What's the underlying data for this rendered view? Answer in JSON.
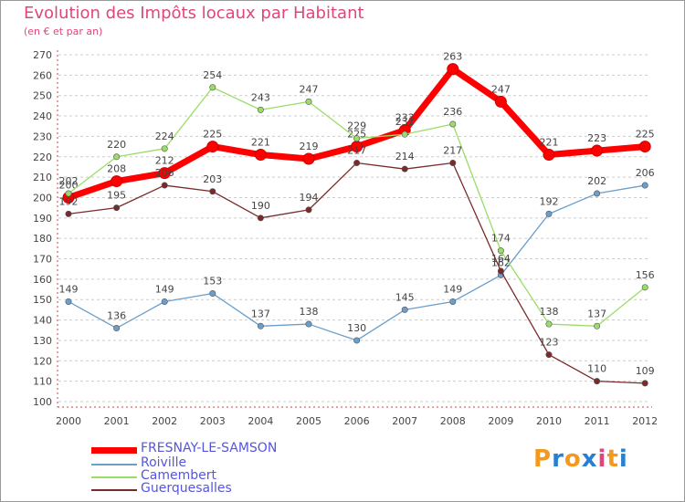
{
  "chart_data": {
    "type": "line",
    "title": "Evolution des Impôts locaux par Habitant",
    "subtitle": "(en € et par an)",
    "xlabel": "",
    "ylabel": "",
    "categories": [
      "2000",
      "2001",
      "2002",
      "2003",
      "2004",
      "2005",
      "2006",
      "2007",
      "2008",
      "2009",
      "2010",
      "2011",
      "2012"
    ],
    "ylim": [
      100,
      270
    ],
    "yticks": [
      100,
      110,
      120,
      130,
      140,
      150,
      160,
      170,
      180,
      190,
      200,
      210,
      220,
      230,
      240,
      250,
      260,
      270
    ],
    "grid": "horizontal-dashed",
    "legend_position": "bottom-left",
    "series": [
      {
        "name": "FRESNAY-LE-SAMSON",
        "color": "#ff0000",
        "emphasis": true,
        "values": [
          200,
          208,
          212,
          225,
          221,
          219,
          225,
          233,
          263,
          247,
          221,
          223,
          225
        ],
        "labels": [
          "200",
          "208",
          "212",
          "225",
          "221",
          "219",
          "225",
          "233",
          "263",
          "247",
          "221",
          "223",
          "225"
        ]
      },
      {
        "name": "Roiville",
        "color": "#6a9ecb",
        "values": [
          149,
          136,
          149,
          153,
          137,
          138,
          130,
          145,
          149,
          162,
          192,
          202,
          206
        ],
        "labels": [
          "149",
          "136",
          "149",
          "153",
          "137",
          "138",
          "130",
          "145",
          "149",
          "162",
          "192",
          "202",
          "206"
        ]
      },
      {
        "name": "Camembert",
        "color": "#99dd66",
        "values": [
          202,
          220,
          224,
          254,
          243,
          247,
          229,
          231,
          236,
          174,
          138,
          137,
          156
        ],
        "labels": [
          "202",
          "220",
          "224",
          "254",
          "243",
          "247",
          "229",
          "231",
          "236",
          "174",
          "138",
          "137",
          "156"
        ]
      },
      {
        "name": "Guerquesalles",
        "color": "#7a2a2a",
        "values": [
          192,
          195,
          206,
          203,
          190,
          194,
          217,
          214,
          217,
          164,
          123,
          110,
          109
        ],
        "labels": [
          "192",
          "195",
          "206",
          "203",
          "190",
          "194",
          "217",
          "214",
          "217",
          "164",
          "123",
          "110",
          "109"
        ]
      }
    ]
  },
  "branding": {
    "letters": [
      "P",
      "r",
      "o",
      "x",
      "i",
      "t",
      "i"
    ],
    "colors": [
      "#f39a1e",
      "#2a7fd0",
      "#f39a1e",
      "#2a7fd0",
      "#e0457b",
      "#f39a1e",
      "#2a7fd0"
    ]
  }
}
